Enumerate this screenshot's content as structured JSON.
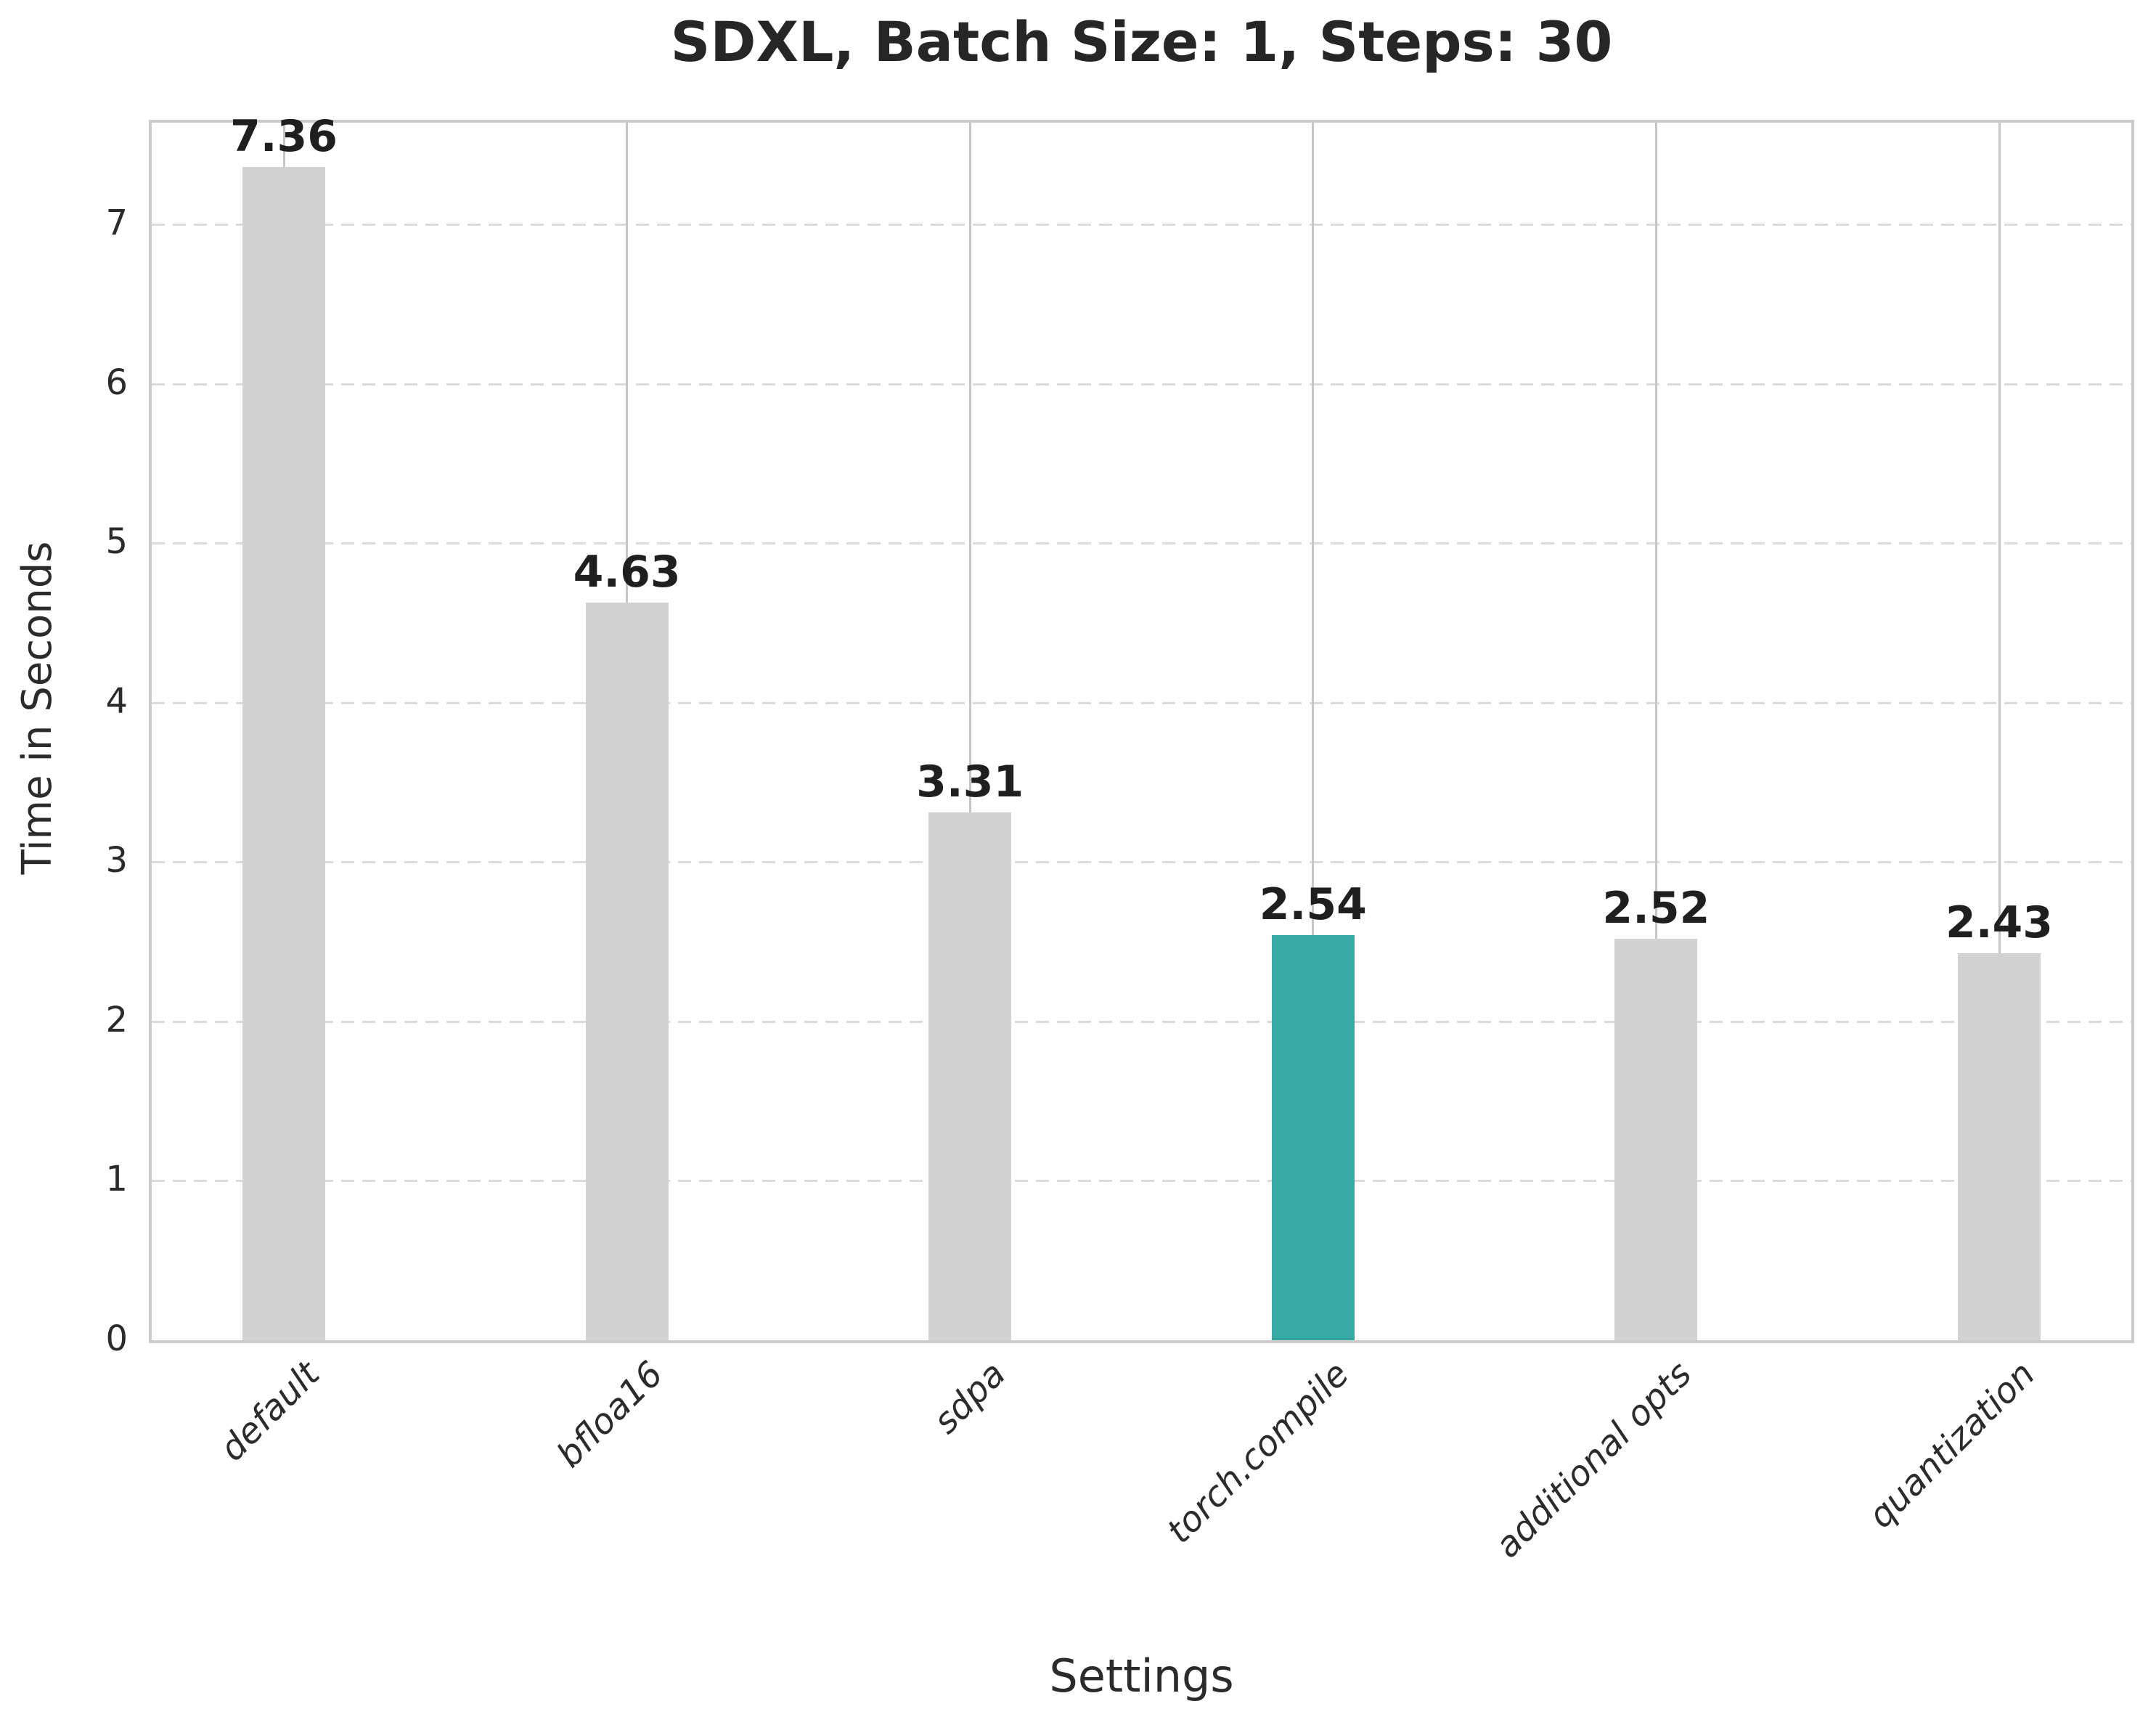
{
  "chart_data": {
    "type": "bar",
    "title": "SDXL, Batch Size: 1, Steps: 30",
    "xlabel": "Settings",
    "ylabel": "Time in Seconds",
    "categories": [
      "default",
      "bfloa16",
      "sdpa",
      "torch.compile",
      "additional opts",
      "quantization"
    ],
    "values": [
      7.36,
      4.63,
      3.31,
      2.54,
      2.52,
      2.43
    ],
    "value_labels": [
      "7.36",
      "4.63",
      "3.31",
      "2.54",
      "2.52",
      "2.43"
    ],
    "highlight_index": 3,
    "yticks": [
      0,
      1,
      2,
      3,
      4,
      5,
      6,
      7
    ],
    "ylim": [
      0,
      7.64
    ],
    "grid": {
      "horizontal": "dashed",
      "vertical": "solid",
      "legend": "none"
    },
    "colors": {
      "bar": "#d2d2d2",
      "highlight": "#37a9a2",
      "grid_vertical": "#c6c6c6",
      "grid_horizontal": "#dbdbdb",
      "spine": "#cccccc",
      "title_text": "#262626",
      "value_text": "#1f1f1f",
      "tick_text": "#2b2b2b"
    }
  }
}
